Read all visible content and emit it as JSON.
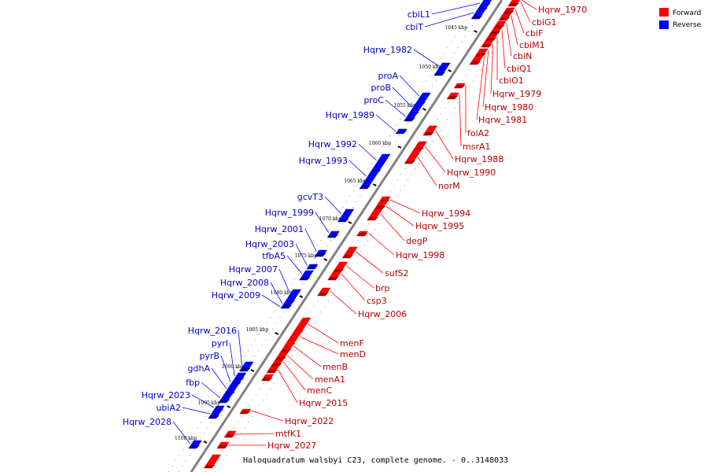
{
  "caption": "Haloquadratum walsbyi C23, complete genome. - 0..3148033",
  "legend": [
    {
      "label": "Forward",
      "color": "#ff0000"
    },
    {
      "label": "Reverse",
      "color": "#0000ff"
    }
  ],
  "colors": {
    "forward": "#ff0000",
    "forward_label": "#b80000",
    "reverse": "#0000ff",
    "reverse_label": "#0000c8",
    "backbone": "#808080"
  },
  "ticks": [
    "1045 kbp",
    "1050 kbp",
    "1055 kbp",
    "1060 kbp",
    "1065 kbp",
    "1070 kbp",
    "1075 kbp",
    "1080 kbp",
    "1085 kbp",
    "1090 kbp",
    "1095 kbp",
    "1100 kbp"
  ],
  "forward_genes": [
    "Hqrw_1970",
    "cbiG1",
    "cbiF",
    "cbiM1",
    "cbiN",
    "cbiQ1",
    "cbiO1",
    "Hqrw_1979",
    "Hqrw_1980",
    "Hqrw_1981",
    "folA2",
    "msrA1",
    "Hqrw_1988",
    "Hqrw_1990",
    "norM",
    "Hqrw_1994",
    "Hqrw_1995",
    "degP",
    "Hqrw_1998",
    "sufS2",
    "brp",
    "csp3",
    "Hqrw_2006",
    "menF",
    "menD",
    "menB",
    "menA1",
    "menC",
    "Hqrw_2015",
    "Hqrw_2022",
    "mtfK1",
    "Hqrw_2027"
  ],
  "reverse_genes": [
    "cbiL1",
    "cbiT",
    "Hqrw_1982",
    "proA",
    "proB",
    "proC",
    "Hqrw_1989",
    "Hqrw_1992",
    "Hqrw_1993",
    "gcvT3",
    "Hqrw_1999",
    "Hqrw_2001",
    "Hqrw_2003",
    "tfbA5",
    "Hqrw_2007",
    "Hqrw_2008",
    "Hqrw_2009",
    "Hqrw_2016",
    "pyrI",
    "pyrB",
    "gdhA",
    "fbp",
    "Hqrw_2023",
    "ubiA2",
    "Hqrw_2028"
  ]
}
